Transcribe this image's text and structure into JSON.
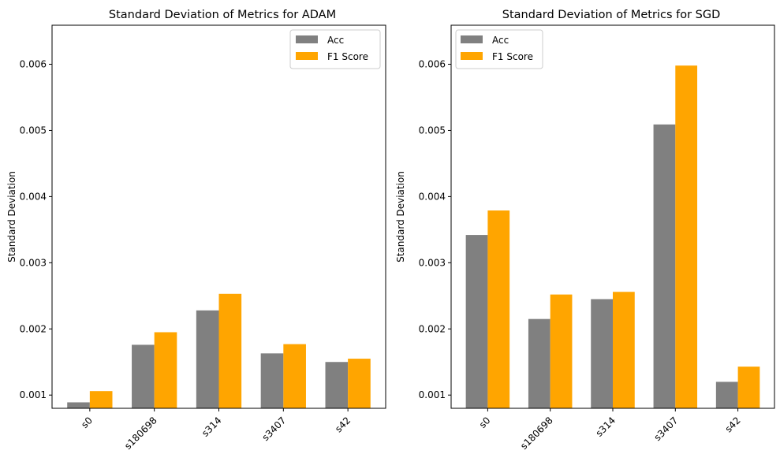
{
  "chart_data": [
    {
      "type": "bar",
      "title": "Standard Deviation of Metrics for ADAM",
      "xlabel": "",
      "ylabel": "Standard Deviation",
      "categories": [
        "s0",
        "s180698",
        "s314",
        "s3407",
        "s42"
      ],
      "series": [
        {
          "name": "Acc",
          "color": "#808080",
          "values": [
            0.00089,
            0.00176,
            0.00228,
            0.00163,
            0.0015
          ]
        },
        {
          "name": "F1 Score",
          "color": "#ffa500",
          "values": [
            0.00106,
            0.00195,
            0.00253,
            0.00177,
            0.00155
          ]
        }
      ],
      "ylim": [
        0.0008,
        0.00659
      ],
      "yticks": [
        0.001,
        0.002,
        0.003,
        0.004,
        0.005,
        0.006
      ],
      "ytick_labels": [
        "0.001",
        "0.002",
        "0.003",
        "0.004",
        "0.005",
        "0.006"
      ],
      "xtick_rotation": 45,
      "legend": "top-right",
      "grid": false
    },
    {
      "type": "bar",
      "title": "Standard Deviation of Metrics for SGD",
      "xlabel": "",
      "ylabel": "Standard Deviation",
      "categories": [
        "s0",
        "s180698",
        "s314",
        "s3407",
        "s42"
      ],
      "series": [
        {
          "name": "Acc",
          "color": "#808080",
          "values": [
            0.00342,
            0.00215,
            0.00245,
            0.00509,
            0.0012
          ]
        },
        {
          "name": "F1 Score",
          "color": "#ffa500",
          "values": [
            0.00379,
            0.00252,
            0.00256,
            0.00598,
            0.00143
          ]
        }
      ],
      "ylim": [
        0.0008,
        0.00659
      ],
      "yticks": [
        0.001,
        0.002,
        0.003,
        0.004,
        0.005,
        0.006
      ],
      "ytick_labels": [
        "0.001",
        "0.002",
        "0.003",
        "0.004",
        "0.005",
        "0.006"
      ],
      "xtick_rotation": 45,
      "legend": "top-left",
      "grid": false
    }
  ]
}
